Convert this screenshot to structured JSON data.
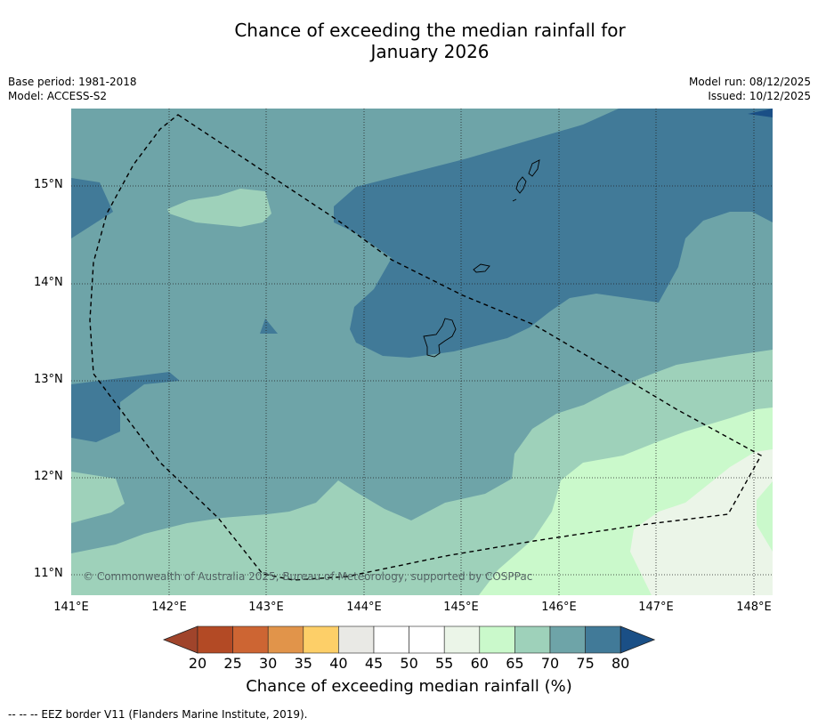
{
  "title": {
    "line1": "Chance of exceeding the median rainfall for",
    "line2": "January 2026"
  },
  "meta": {
    "base_period": "Base period: 1981-2018",
    "model": "Model: ACCESS-S2",
    "model_run": "Model run: 08/12/2025",
    "issued": "Issued: 10/12/2025"
  },
  "axes": {
    "lat_labels": [
      "15°N",
      "14°N",
      "13°N",
      "12°N",
      "11°N"
    ],
    "lon_labels": [
      "141°E",
      "142°E",
      "143°E",
      "144°E",
      "145°E",
      "146°E",
      "147°E",
      "148°E"
    ]
  },
  "copyright": "© Commonwealth of Australia 2025, Bureau of Meteorology, supported by COSPPac",
  "colorbar": {
    "ticks": [
      "20",
      "25",
      "30",
      "35",
      "40",
      "45",
      "50",
      "55",
      "60",
      "65",
      "70",
      "75",
      "80"
    ],
    "colors": [
      "#b34a25",
      "#cd6533",
      "#e1944a",
      "#fdcf68",
      "#e9e9e5",
      "#ffffff",
      "#ffffff",
      "#ebf5e8",
      "#caf9cb",
      "#9ed1ba",
      "#6ea4a8",
      "#417a98"
    ],
    "under_color": "#a0442b",
    "over_color": "#1a4f86",
    "title": "Chance of exceeding median rainfall (%)"
  },
  "footnote": "--  --  -- EEZ border V11 (Flanders Marine Institute, 2019)."
}
